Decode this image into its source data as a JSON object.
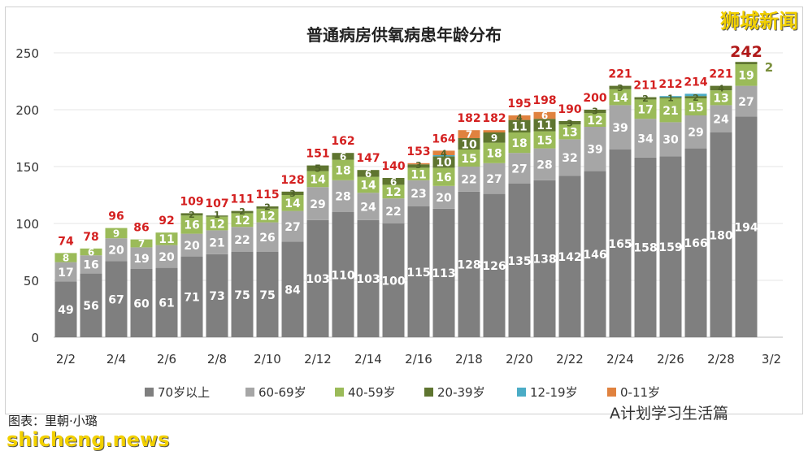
{
  "chart_data": {
    "type": "bar",
    "stacked": true,
    "title": "普通病房供氧病患年龄分布",
    "categories": [
      "2/2",
      "2/3",
      "2/4",
      "2/5",
      "2/6",
      "2/7",
      "2/8",
      "2/9",
      "2/10",
      "2/11",
      "2/12",
      "2/13",
      "2/14",
      "2/15",
      "2/16",
      "2/17",
      "2/18",
      "2/19",
      "2/20",
      "2/21",
      "2/22",
      "2/23",
      "2/24",
      "2/25",
      "2/26",
      "2/27",
      "2/28",
      "3/1"
    ],
    "x_tick_labels": [
      "2/2",
      "2/4",
      "2/6",
      "2/8",
      "2/10",
      "2/12",
      "2/14",
      "2/16",
      "2/18",
      "2/20",
      "2/22",
      "2/24",
      "2/26",
      "2/28",
      "3/2"
    ],
    "ylim": [
      0,
      250
    ],
    "y_ticks": [
      0,
      50,
      100,
      150,
      200,
      250
    ],
    "grid": true,
    "legend_position": "bottom",
    "series": [
      {
        "name": "70岁以上",
        "color": "#7f7f7f",
        "values": [
          49,
          56,
          67,
          60,
          61,
          71,
          73,
          75,
          75,
          84,
          103,
          110,
          103,
          100,
          115,
          113,
          128,
          126,
          135,
          138,
          142,
          146,
          165,
          158,
          159,
          166,
          180,
          194
        ]
      },
      {
        "name": "60-69岁",
        "color": "#a6a6a6",
        "values": [
          17,
          16,
          20,
          19,
          20,
          20,
          21,
          22,
          26,
          27,
          29,
          28,
          24,
          22,
          23,
          20,
          22,
          27,
          27,
          28,
          32,
          39,
          39,
          34,
          30,
          29,
          24,
          27
        ]
      },
      {
        "name": "40-59岁",
        "color": "#9bbb59",
        "values": [
          8,
          6,
          9,
          7,
          11,
          16,
          12,
          12,
          12,
          14,
          14,
          18,
          14,
          12,
          11,
          16,
          15,
          18,
          18,
          15,
          13,
          12,
          14,
          17,
          21,
          15,
          13,
          19
        ]
      },
      {
        "name": "20-39岁",
        "color": "#5f7530",
        "values": [
          0,
          0,
          0,
          0,
          0,
          2,
          1,
          2,
          2,
          3,
          5,
          6,
          6,
          6,
          3,
          10,
          10,
          9,
          11,
          11,
          3,
          3,
          3,
          2,
          1,
          2,
          4,
          2
        ]
      },
      {
        "name": "12-19岁",
        "color": "#4bacc6",
        "values": [
          0,
          0,
          0,
          0,
          0,
          0,
          0,
          0,
          0,
          0,
          0,
          0,
          0,
          0,
          0,
          1,
          0,
          0,
          0,
          0,
          0,
          0,
          0,
          0,
          1,
          2,
          0,
          0
        ]
      },
      {
        "name": "0-11岁",
        "color": "#e0823f",
        "values": [
          0,
          0,
          0,
          0,
          0,
          0,
          0,
          0,
          0,
          0,
          0,
          0,
          0,
          0,
          1,
          4,
          7,
          2,
          4,
          6,
          0,
          0,
          0,
          0,
          0,
          0,
          0,
          0
        ]
      }
    ],
    "totals": [
      74,
      78,
      96,
      86,
      92,
      109,
      107,
      111,
      115,
      128,
      151,
      162,
      147,
      140,
      153,
      164,
      182,
      182,
      195,
      198,
      190,
      200,
      221,
      211,
      212,
      214,
      221,
      242
    ],
    "total_label_color": "#d42020"
  },
  "watermarks": {
    "top_right": "狮城新闻",
    "bottom_left": "shicheng.news",
    "credit": "图表：里朝·小璐",
    "wechat": "A计划学习生活篇"
  }
}
